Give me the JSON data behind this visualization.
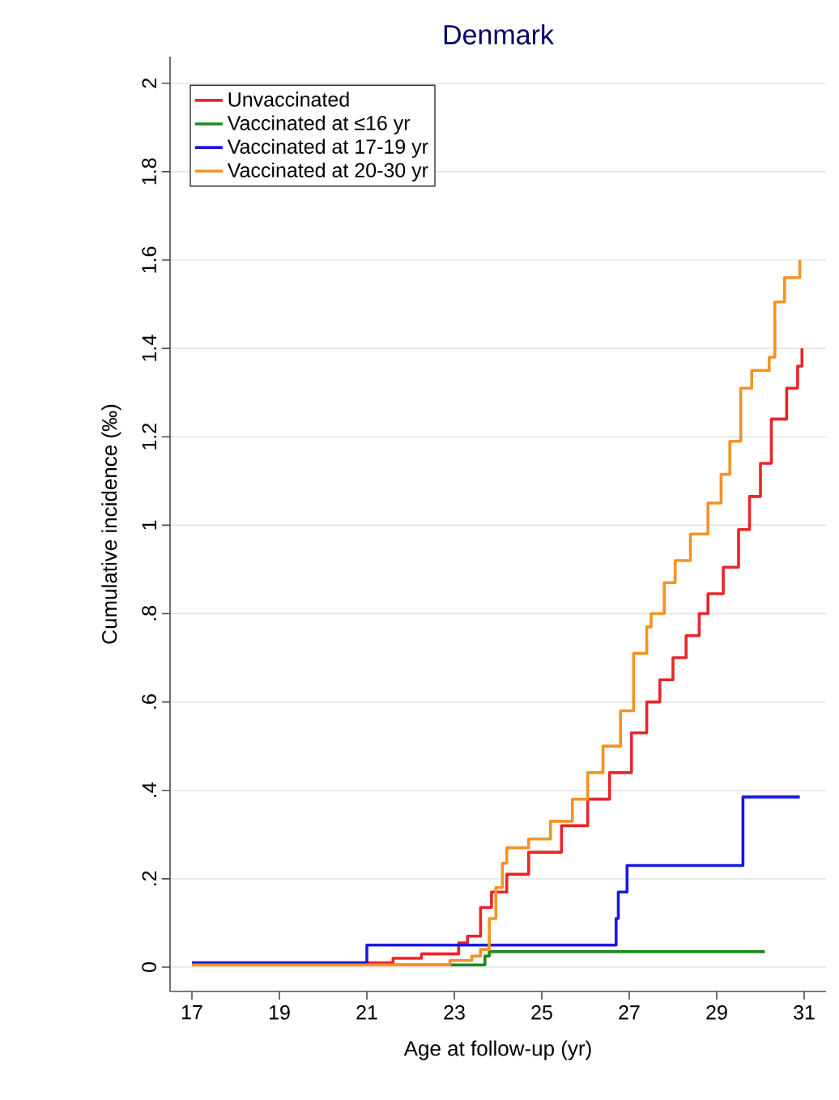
{
  "chart_data": {
    "type": "step",
    "title": "Denmark",
    "xlabel": "Age at follow-up (yr)",
    "ylabel": "Cumulative incidence (‰)",
    "xlim": [
      16.5,
      31.5
    ],
    "ylim": [
      -0.055,
      2.06
    ],
    "xticks": [
      17,
      19,
      21,
      23,
      25,
      27,
      29,
      31
    ],
    "yticks": [
      0,
      {
        "value": 0.2,
        "label": ".2"
      },
      {
        "value": 0.4,
        "label": ".4"
      },
      {
        "value": 0.6,
        "label": ".6"
      },
      {
        "value": 0.8,
        "label": ".8"
      },
      1,
      1.2,
      1.4,
      1.6,
      1.8,
      2
    ],
    "grid": "y",
    "legend": "top left",
    "series": [
      {
        "name": "Unvaccinated",
        "color": "#e8262a",
        "x": [
          17,
          21.0,
          21.6,
          22.25,
          23.1,
          23.3,
          23.6,
          23.85,
          24.2,
          24.7,
          25.45,
          26.05,
          26.55,
          27.05,
          27.4,
          27.7,
          28.0,
          28.3,
          28.6,
          28.8,
          29.15,
          29.5,
          29.75,
          30.0,
          30.25,
          30.6,
          30.85,
          30.95
        ],
        "values": [
          0.005,
          0.01,
          0.02,
          0.03,
          0.055,
          0.07,
          0.135,
          0.17,
          0.21,
          0.26,
          0.32,
          0.38,
          0.44,
          0.53,
          0.6,
          0.65,
          0.7,
          0.75,
          0.8,
          0.845,
          0.905,
          0.99,
          1.065,
          1.14,
          1.24,
          1.31,
          1.36,
          1.4
        ]
      },
      {
        "name": "Vaccinated at ≤16 yr",
        "color": "#1e8a1e",
        "x": [
          17,
          23.7,
          23.8,
          30.1
        ],
        "values": [
          0.005,
          0.025,
          0.035,
          0.035
        ]
      },
      {
        "name": "Vaccinated at 17-19 yr",
        "color": "#1a1adc",
        "x": [
          17,
          21.0,
          26.7,
          26.75,
          26.95,
          29.6,
          30.9
        ],
        "values": [
          0.01,
          0.05,
          0.11,
          0.17,
          0.23,
          0.385,
          0.385
        ]
      },
      {
        "name": "Vaccinated at 20-30 yr",
        "color": "#f39325",
        "x": [
          17,
          22.9,
          23.4,
          23.6,
          23.8,
          23.95,
          24.1,
          24.2,
          24.7,
          25.2,
          25.7,
          26.05,
          26.4,
          26.8,
          27.1,
          27.4,
          27.5,
          27.8,
          28.05,
          28.4,
          28.8,
          29.1,
          29.3,
          29.55,
          29.8,
          30.2,
          30.33,
          30.55,
          30.9
        ],
        "values": [
          0.005,
          0.015,
          0.025,
          0.04,
          0.11,
          0.18,
          0.235,
          0.27,
          0.29,
          0.33,
          0.38,
          0.44,
          0.5,
          0.58,
          0.71,
          0.77,
          0.8,
          0.87,
          0.92,
          0.98,
          1.05,
          1.115,
          1.19,
          1.31,
          1.35,
          1.38,
          1.505,
          1.56,
          1.6
        ]
      }
    ]
  }
}
